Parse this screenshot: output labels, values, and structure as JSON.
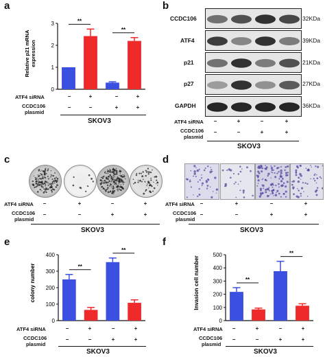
{
  "panels": {
    "a": {
      "letter": "a",
      "ylabel": "Relative p21 mRNA expression",
      "ylabel_line1": "Relative p21 mRNA",
      "ylabel_line2": "expression",
      "ticks": [
        "0",
        "1",
        "2",
        "3"
      ],
      "sig": [
        "**",
        "**"
      ],
      "row1_label": "ATF4 siRNA",
      "row2_label_1": "CCDC106",
      "row2_label_2": "plasmid",
      "row1_signs": [
        "−",
        "+",
        "−",
        "+"
      ],
      "row2_signs": [
        "−",
        "−",
        "+",
        "+"
      ],
      "group": "SKOV3"
    },
    "b": {
      "letter": "b",
      "proteins": [
        "CCDC106",
        "ATF4",
        "p21",
        "p27",
        "GAPDH"
      ],
      "sizes": [
        "32KDa",
        "39KDa",
        "21KDa",
        "27KDa",
        "36KDa"
      ],
      "row1_label": "ATF4 siRNA",
      "row2_label_1": "CCDC106",
      "row2_label_2": "plasmid",
      "row1_signs": [
        "−",
        "+",
        "−",
        "+"
      ],
      "row2_signs": [
        "−",
        "−",
        "+",
        "+"
      ],
      "group": "SKOV3"
    },
    "c": {
      "letter": "c",
      "row1_label": "ATF4 siRNA",
      "row2_label_1": "CCDC106",
      "row2_label_2": "plasmid",
      "row1_signs": [
        "−",
        "+",
        "−",
        "+"
      ],
      "row2_signs": [
        "−",
        "−",
        "+",
        "+"
      ],
      "group": "SKOV3"
    },
    "d": {
      "letter": "d",
      "row1_label": "ATF4 siRNA",
      "row2_label_1": "CCDC106",
      "row2_label_2": "plasmid",
      "row1_signs": [
        "−",
        "+",
        "−",
        "+"
      ],
      "row2_signs": [
        "−",
        "−",
        "+",
        "+"
      ],
      "group": "SKOV3"
    },
    "e": {
      "letter": "e",
      "ylabel": "colony number",
      "ticks": [
        "0",
        "100",
        "200",
        "300",
        "400"
      ],
      "sig": [
        "**",
        "**"
      ],
      "row1_label": "ATF4 siRNA",
      "row2_label_1": "CCDC106",
      "row2_label_2": "plasmid",
      "row1_signs": [
        "−",
        "+",
        "−",
        "+"
      ],
      "row2_signs": [
        "−",
        "−",
        "+",
        "+"
      ],
      "group": "SKOV3"
    },
    "f": {
      "letter": "f",
      "ylabel": "Invasion cell number",
      "ticks": [
        "0",
        "100",
        "200",
        "300",
        "400",
        "500"
      ],
      "sig": [
        "**",
        "**"
      ],
      "row1_label": "ATF4 siRNA",
      "row2_label_1": "CCDC106",
      "row2_label_2": "plasmid",
      "row1_signs": [
        "−",
        "+",
        "−",
        "+"
      ],
      "row2_signs": [
        "−",
        "−",
        "+",
        "+"
      ],
      "group": "SKOV3"
    }
  },
  "colors": {
    "blue": "#3b4fe0",
    "red": "#ee2a2a"
  },
  "chart_data": [
    {
      "panel": "a",
      "type": "bar",
      "ylabel": "Relative p21 mRNA expression",
      "ylim": [
        0,
        3
      ],
      "values": [
        1.0,
        2.42,
        0.3,
        2.2
      ],
      "errors": [
        0,
        0.32,
        0.04,
        0.15
      ],
      "bar_colors": [
        "blue",
        "red",
        "blue",
        "red"
      ]
    },
    {
      "panel": "e",
      "type": "bar",
      "ylabel": "colony number",
      "ylim": [
        0,
        400
      ],
      "values": [
        250,
        65,
        355,
        108
      ],
      "errors": [
        30,
        15,
        25,
        18
      ],
      "bar_colors": [
        "blue",
        "red",
        "blue",
        "red"
      ]
    },
    {
      "panel": "f",
      "type": "bar",
      "ylabel": "Invasion cell number",
      "ylim": [
        0,
        500
      ],
      "values": [
        218,
        85,
        375,
        113
      ],
      "errors": [
        32,
        10,
        75,
        15
      ],
      "bar_colors": [
        "blue",
        "red",
        "blue",
        "red"
      ]
    }
  ]
}
